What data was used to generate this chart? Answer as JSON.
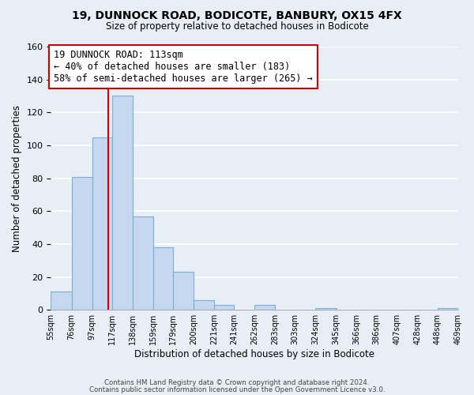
{
  "title": "19, DUNNOCK ROAD, BODICOTE, BANBURY, OX15 4FX",
  "subtitle": "Size of property relative to detached houses in Bodicote",
  "xlabel": "Distribution of detached houses by size in Bodicote",
  "ylabel": "Number of detached properties",
  "bin_edges": [
    55,
    76,
    97,
    117,
    138,
    159,
    179,
    200,
    221,
    241,
    262,
    283,
    303,
    324,
    345,
    366,
    386,
    407,
    428,
    448,
    469
  ],
  "bin_labels": [
    "55sqm",
    "76sqm",
    "97sqm",
    "117sqm",
    "138sqm",
    "159sqm",
    "179sqm",
    "200sqm",
    "221sqm",
    "241sqm",
    "262sqm",
    "283sqm",
    "303sqm",
    "324sqm",
    "345sqm",
    "366sqm",
    "386sqm",
    "407sqm",
    "428sqm",
    "448sqm",
    "469sqm"
  ],
  "counts": [
    11,
    81,
    105,
    130,
    57,
    38,
    23,
    6,
    3,
    0,
    3,
    0,
    0,
    1,
    0,
    0,
    0,
    0,
    0,
    1
  ],
  "bar_color": "#c5d8ef",
  "bar_edge_color": "#7ab0d4",
  "property_value": 113,
  "vline_color": "#cc0000",
  "annotation_line1": "19 DUNNOCK ROAD: 113sqm",
  "annotation_line2": "← 40% of detached houses are smaller (183)",
  "annotation_line3": "58% of semi-detached houses are larger (265) →",
  "annotation_box_color": "#ffffff",
  "annotation_box_edge": "#cc0000",
  "ylim": [
    0,
    160
  ],
  "yticks": [
    0,
    20,
    40,
    60,
    80,
    100,
    120,
    140,
    160
  ],
  "footer1": "Contains HM Land Registry data © Crown copyright and database right 2024.",
  "footer2": "Contains public sector information licensed under the Open Government Licence v3.0.",
  "bg_color": "#e8eef6",
  "plot_bg_color": "#e8eef6",
  "grid_color": "#ffffff"
}
